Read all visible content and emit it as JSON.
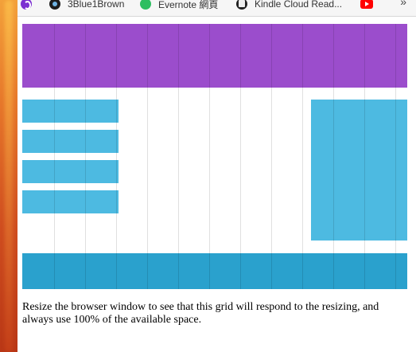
{
  "bookmarks_bar": {
    "items": [
      {
        "label": "",
        "icon": "purple-logo-icon"
      },
      {
        "label": "3Blue1Brown",
        "icon": "3blue1brown-icon"
      },
      {
        "label": "Evernote 網頁",
        "icon": "evernote-icon"
      },
      {
        "label": "Kindle Cloud Read...",
        "icon": "kindle-icon"
      },
      {
        "label": "",
        "icon": "youtube-icon"
      }
    ],
    "overflow_label": "»"
  },
  "colors": {
    "header": "#9b4dcc",
    "nav": "#4dbae1",
    "aside": "#4dbae1",
    "footer": "#2aa1cd"
  },
  "grid": {
    "columns": 12
  },
  "nav": {
    "item_count": 4
  },
  "description": "Resize the browser window to see that this grid will respond to the resizing, and always use 100% of the available space."
}
